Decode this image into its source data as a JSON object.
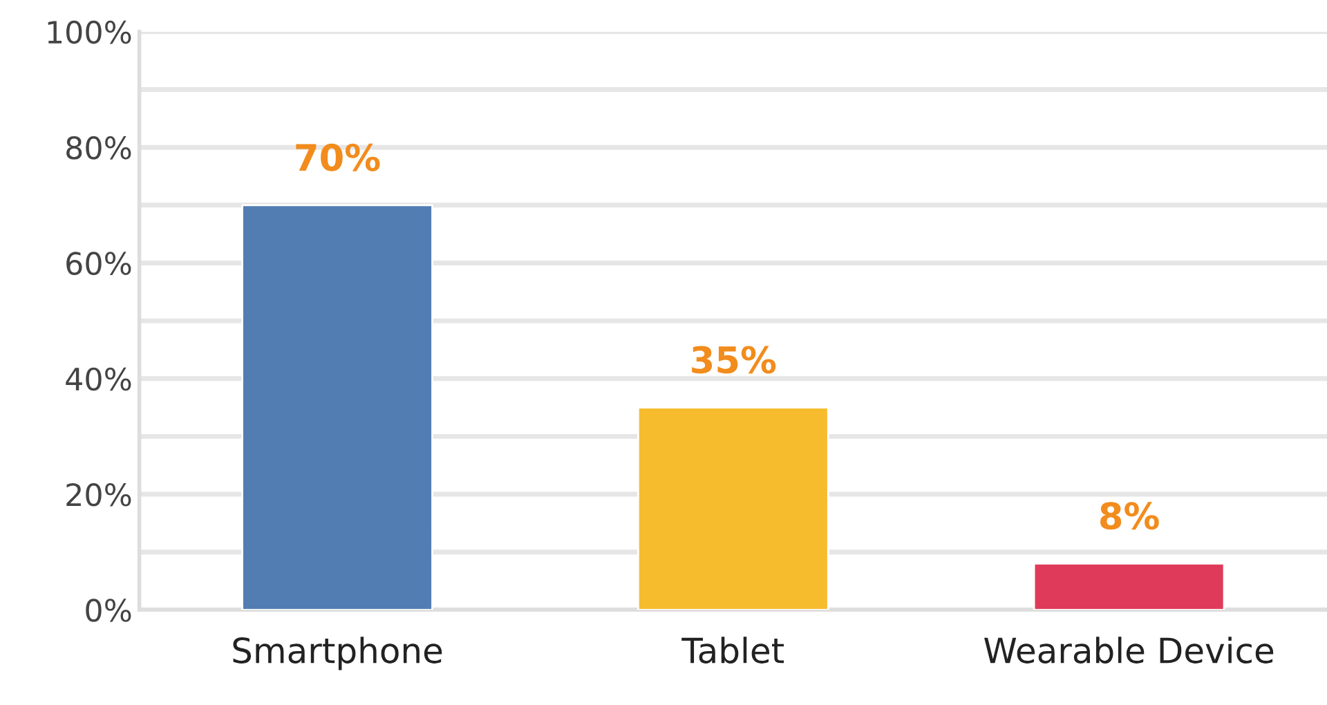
{
  "chart_data": {
    "type": "bar",
    "categories": [
      "Smartphone",
      "Tablet",
      "Wearable Device"
    ],
    "values": [
      70,
      35,
      8
    ],
    "colors": [
      "#517db3",
      "#f6bc2e",
      "#e03a5a"
    ],
    "value_labels": [
      "70%",
      "35%",
      "8%"
    ],
    "ylim": [
      0,
      100
    ],
    "yticks": [
      {
        "value": 0,
        "label": "0%"
      },
      {
        "value": 10,
        "label": null
      },
      {
        "value": 20,
        "label": "20%"
      },
      {
        "value": 30,
        "label": null
      },
      {
        "value": 40,
        "label": "40%"
      },
      {
        "value": 50,
        "label": null
      },
      {
        "value": 60,
        "label": "60%"
      },
      {
        "value": 70,
        "label": null
      },
      {
        "value": 80,
        "label": "80%"
      },
      {
        "value": 90,
        "label": null
      },
      {
        "value": 100,
        "label": "100%"
      }
    ],
    "grid": "y"
  }
}
